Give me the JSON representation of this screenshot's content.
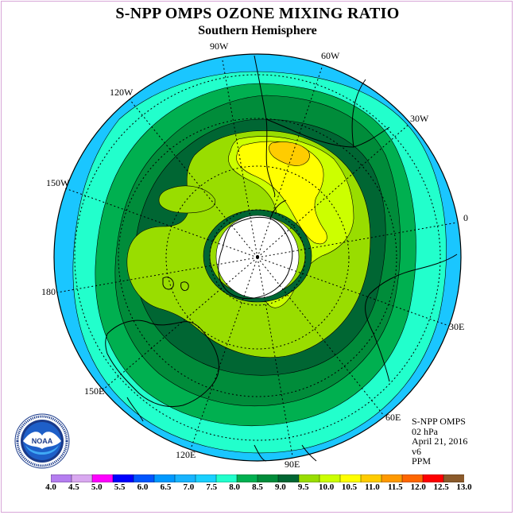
{
  "title": "S-NPP OMPS OZONE MIXING RATIO",
  "subtitle": "Southern Hemisphere",
  "longitude_labels": [
    "90W",
    "60W",
    "120W",
    "30W",
    "150W",
    "0",
    "180",
    "30E",
    "150E",
    "60E",
    "120E",
    "90E"
  ],
  "info": {
    "instrument": "S-NPP OMPS",
    "level": "02 hPa",
    "date": "April 21, 2016",
    "version": "v6",
    "units": "PPM"
  },
  "logo_text": "NOAA",
  "colorbar": {
    "ticks": [
      "4.0",
      "4.5",
      "5.0",
      "5.5",
      "6.0",
      "6.5",
      "7.0",
      "7.5",
      "8.0",
      "8.5",
      "9.0",
      "9.5",
      "10.0",
      "10.5",
      "11.0",
      "11.5",
      "12.0",
      "12.5",
      "13.0"
    ],
    "colors": [
      "#b57ef0",
      "#d9a8f0",
      "#ff00ff",
      "#0000ff",
      "#0055ff",
      "#0099ff",
      "#18b4ff",
      "#1ad0ff",
      "#22ffcc",
      "#00b050",
      "#008c3a",
      "#006633",
      "#99dd00",
      "#ccff00",
      "#ffff00",
      "#ffcc00",
      "#ff9900",
      "#ff6600",
      "#ff0000",
      "#8b5a2b"
    ]
  },
  "map_colors": {
    "outer": "#1ac6ff",
    "band1": "#22ffcc",
    "band2": "#00b050",
    "band3": "#008c3a",
    "band4": "#006633",
    "band5": "#99dd00",
    "band6": "#ccff00",
    "peak": "#ffff00",
    "max": "#ffcc00",
    "polar_gap": "#ffffff"
  }
}
